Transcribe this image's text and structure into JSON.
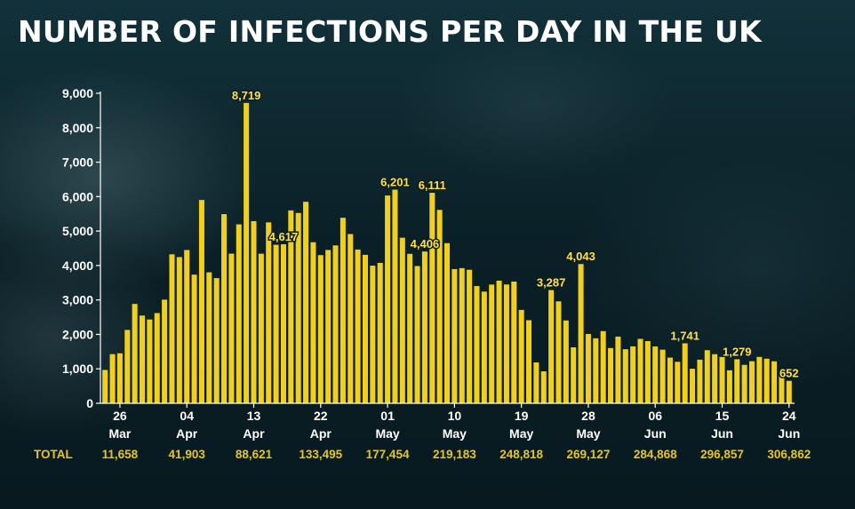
{
  "title": "NUMBER OF INFECTIONS PER DAY IN THE UK",
  "colors": {
    "bar": "#f1cf1d",
    "bar_dark": "#c9a80f",
    "label": "#ffe14a",
    "axis": "#ffffff"
  },
  "chart_data": {
    "type": "bar",
    "title": "NUMBER OF INFECTIONS PER DAY IN THE UK",
    "xlabel": "",
    "ylabel": "",
    "ylim": [
      0,
      9000
    ],
    "y_ticks": [
      "0",
      "1,000",
      "2,000",
      "3,000",
      "4,000",
      "5,000",
      "6,000",
      "7,000",
      "8,000",
      "9,000"
    ],
    "grid": false,
    "x_ticks": [
      {
        "day": "26",
        "month": "Mar",
        "bar_index": 2
      },
      {
        "day": "04",
        "month": "Apr",
        "bar_index": 11
      },
      {
        "day": "13",
        "month": "Apr",
        "bar_index": 20
      },
      {
        "day": "22",
        "month": "Apr",
        "bar_index": 29
      },
      {
        "day": "01",
        "month": "May",
        "bar_index": 38
      },
      {
        "day": "10",
        "month": "May",
        "bar_index": 47
      },
      {
        "day": "19",
        "month": "May",
        "bar_index": 56
      },
      {
        "day": "28",
        "month": "May",
        "bar_index": 65
      },
      {
        "day": "06",
        "month": "Jun",
        "bar_index": 74
      },
      {
        "day": "15",
        "month": "Jun",
        "bar_index": 83
      },
      {
        "day": "24",
        "month": "Jun",
        "bar_index": 92
      }
    ],
    "start_date": "24 Mar",
    "values": [
      967,
      1427,
      1452,
      2129,
      2885,
      2546,
      2433,
      2619,
      3009,
      4324,
      4244,
      4450,
      3735,
      5903,
      3802,
      3634,
      5491,
      4344,
      5195,
      8719,
      5288,
      4342,
      5252,
      4603,
      4617,
      5599,
      5525,
      5850,
      4676,
      4301,
      4451,
      4583,
      5386,
      4913,
      4463,
      4309,
      3996,
      4076,
      6032,
      6201,
      4806,
      4339,
      3985,
      4406,
      6111,
      5614,
      4649,
      3896,
      3923,
      3877,
      3403,
      3242,
      3446,
      3560,
      3450,
      3534,
      2711,
      2412,
      1186,
      927,
      3287,
      2959,
      2405,
      1625,
      4043,
      2013,
      1887,
      2095,
      1604,
      1936,
      1570,
      1653,
      1871,
      1805,
      1650,
      1557,
      1326,
      1205,
      1741,
      1003,
      1266,
      1541,
      1425,
      1346,
      958,
      1279,
      1115,
      1221,
      1346,
      1295,
      1218,
      835,
      652
    ],
    "annotations": [
      {
        "label": "8,719",
        "bar_index": 19
      },
      {
        "label": "4,617",
        "bar_index": 24
      },
      {
        "label": "6,201",
        "bar_index": 39
      },
      {
        "label": "4,406",
        "bar_index": 43
      },
      {
        "label": "6,111",
        "bar_index": 44
      },
      {
        "label": "3,287",
        "bar_index": 60
      },
      {
        "label": "4,043",
        "bar_index": 64
      },
      {
        "label": "1,741",
        "bar_index": 78
      },
      {
        "label": "1,279",
        "bar_index": 85
      },
      {
        "label": "652",
        "bar_index": 92
      }
    ]
  },
  "totals": {
    "label": "TOTAL",
    "values": [
      "11,658",
      "41,903",
      "88,621",
      "133,495",
      "177,454",
      "219,183",
      "248,818",
      "269,127",
      "284,868",
      "296,857",
      "306,862"
    ]
  }
}
